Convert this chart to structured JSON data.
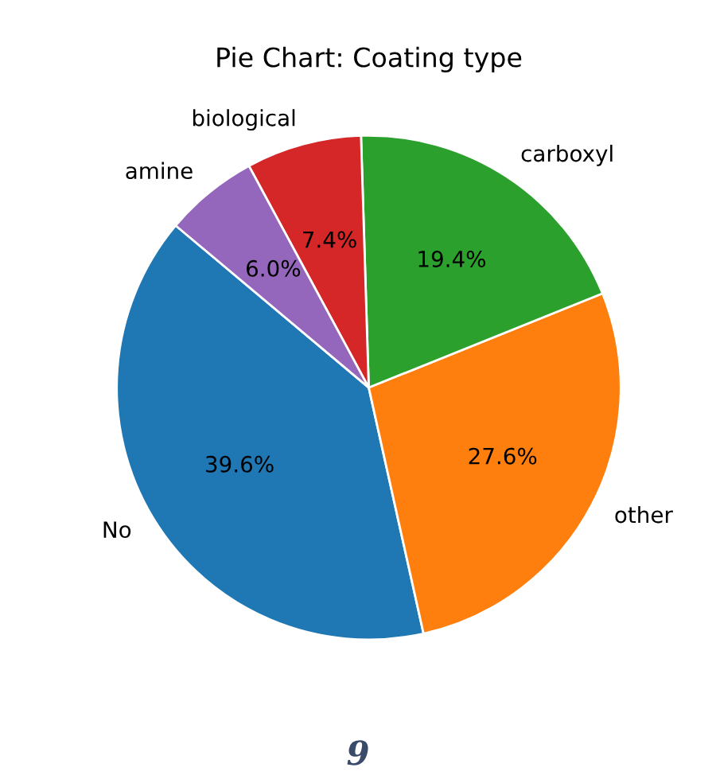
{
  "chart_data": {
    "type": "pie",
    "title": "Pie Chart: Coating type",
    "categories": [
      "No",
      "other",
      "carboxyl",
      "biological",
      "amine"
    ],
    "values": [
      39.6,
      27.6,
      19.4,
      7.4,
      6.0
    ],
    "colors": [
      "#1f77b4",
      "#ff7f0e",
      "#2ca02c",
      "#d62728",
      "#9467bd"
    ],
    "value_labels": [
      "39.6%",
      "27.6%",
      "19.4%",
      "7.4%",
      "6.0%"
    ],
    "annotations": [
      "9"
    ]
  }
}
